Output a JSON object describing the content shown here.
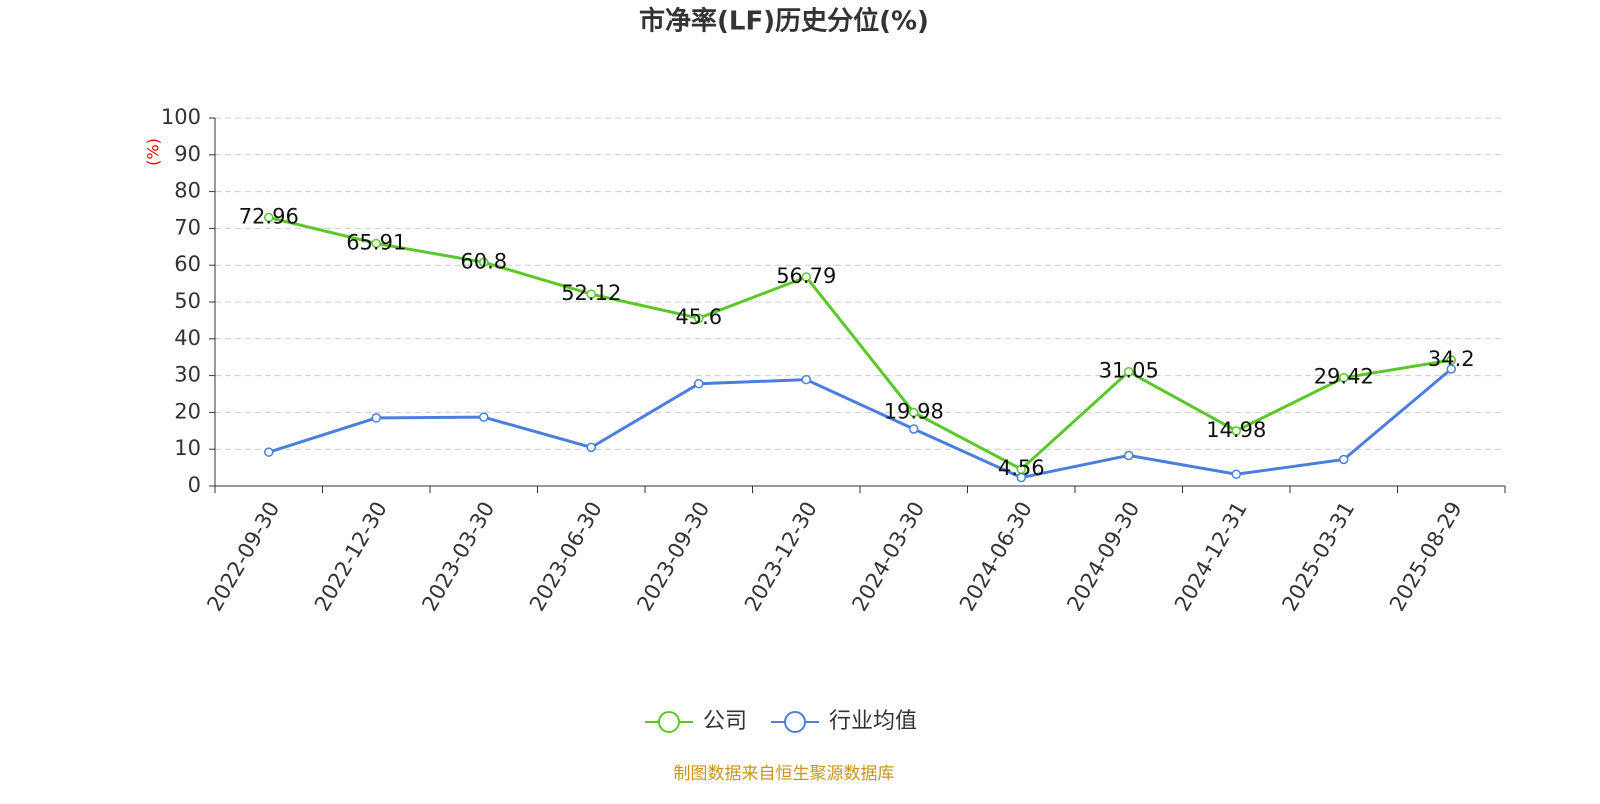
{
  "chart_data": {
    "type": "line",
    "title": "市净率(LF)历史分位(%)",
    "y_label": "(%)",
    "categories": [
      "2022-09-30",
      "2022-12-30",
      "2023-03-30",
      "2023-06-30",
      "2023-09-30",
      "2023-12-30",
      "2024-03-30",
      "2024-06-30",
      "2024-09-30",
      "2024-12-31",
      "2025-03-31",
      "2025-08-29"
    ],
    "series": [
      {
        "name": "公司",
        "color": "#5cc72a",
        "values": [
          72.96,
          65.91,
          60.8,
          52.12,
          45.6,
          56.79,
          19.98,
          4.56,
          31.05,
          14.98,
          29.42,
          34.2
        ],
        "show_labels": true
      },
      {
        "name": "行业均值",
        "color": "#4a7fdc",
        "values": [
          9.2,
          18.5,
          18.7,
          10.5,
          27.8,
          28.9,
          15.5,
          2.3,
          8.3,
          3.2,
          7.2,
          31.8
        ],
        "show_labels": false
      }
    ],
    "ylim": [
      0,
      100
    ],
    "yticks": [
      0,
      10,
      20,
      30,
      40,
      50,
      60,
      70,
      80,
      90,
      100
    ],
    "grid": true,
    "source": "制图数据来自恒生聚源数据库"
  }
}
